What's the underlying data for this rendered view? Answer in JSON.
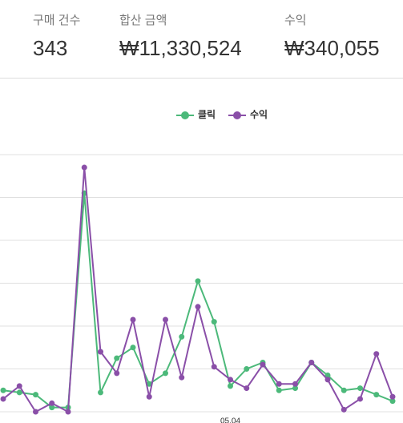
{
  "stats": [
    {
      "label": "구매 건수",
      "value": "343"
    },
    {
      "label": "합산 금액",
      "value": "₩11,330,524"
    },
    {
      "label": "수익",
      "value": "₩340,055"
    }
  ],
  "chart_data": {
    "type": "line",
    "categories": [
      null,
      null,
      null,
      null,
      null,
      null,
      null,
      null,
      null,
      null,
      null,
      null,
      null,
      null,
      "05.04",
      null,
      null,
      null,
      null,
      null,
      null,
      null,
      null,
      null,
      null
    ],
    "series": [
      {
        "name": "클릭",
        "color": "#4cb97a",
        "values": [
          10,
          9,
          8,
          2,
          2,
          102,
          9,
          25,
          30,
          13,
          18,
          35,
          61,
          42,
          12,
          20,
          23,
          10,
          11,
          23,
          17,
          10,
          11,
          8,
          5
        ]
      },
      {
        "name": "수익",
        "color": "#8a4fa8",
        "values": [
          6,
          12,
          0,
          4,
          0,
          114,
          28,
          18,
          43,
          7,
          43,
          16,
          49,
          21,
          15,
          11,
          22,
          13,
          13,
          23,
          15,
          1,
          6,
          27,
          7
        ]
      }
    ],
    "ylim": [
      0,
      120
    ],
    "yticks": [
      0,
      20,
      40,
      60,
      80,
      100,
      120
    ],
    "grid": true,
    "legend": "top"
  }
}
